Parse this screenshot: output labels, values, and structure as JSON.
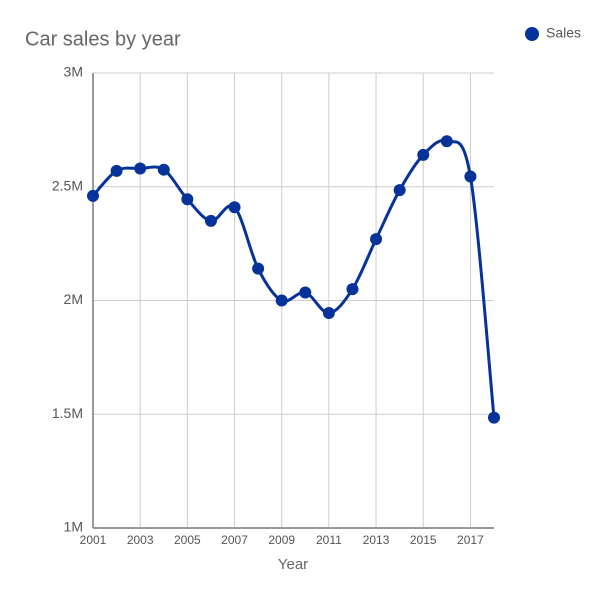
{
  "chart_data": {
    "type": "line",
    "title": "Car sales by year",
    "x_label": "Year",
    "x": [
      2001,
      2002,
      2003,
      2004,
      2005,
      2006,
      2007,
      2008,
      2009,
      2010,
      2011,
      2012,
      2013,
      2014,
      2015,
      2016,
      2017,
      2018
    ],
    "series": [
      {
        "name": "Sales",
        "color": "#063399",
        "values": [
          2460000,
          2570000,
          2580000,
          2575000,
          2445000,
          2350000,
          2410000,
          2140000,
          2000000,
          2035000,
          1945000,
          2050000,
          2270000,
          2485000,
          2640000,
          2700000,
          2545000,
          1485000
        ]
      }
    ],
    "xlim": [
      2001,
      2018
    ],
    "xticks": [
      2001,
      2003,
      2005,
      2007,
      2009,
      2011,
      2013,
      2015,
      2017
    ],
    "ylim": [
      1000000,
      3000000
    ],
    "yticks": [
      {
        "value": 1000000,
        "label": "1M"
      },
      {
        "value": 1500000,
        "label": "1.5M"
      },
      {
        "value": 2000000,
        "label": "2M"
      },
      {
        "value": 2500000,
        "label": "2.5M"
      },
      {
        "value": 3000000,
        "label": "3M"
      }
    ],
    "grid": true,
    "legend": "top-right"
  }
}
